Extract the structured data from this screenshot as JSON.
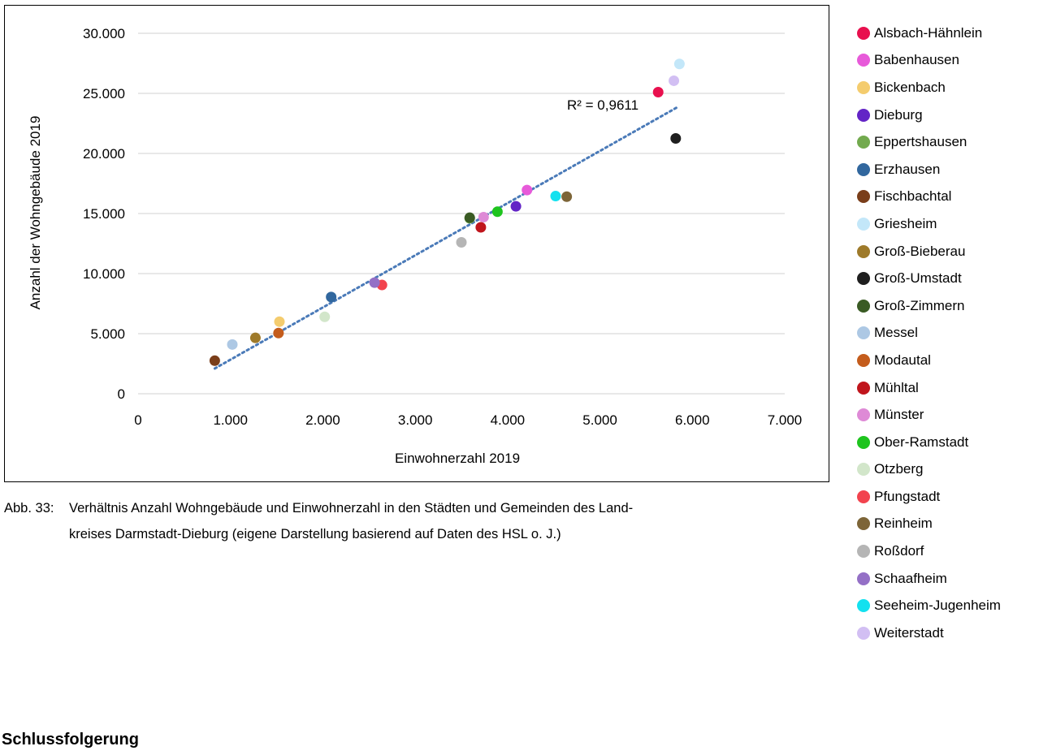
{
  "figure": {
    "caption_prefix": "Abb. 33:",
    "caption_line1": "Verhältnis Anzahl Wohngebäude und Einwohnerzahl in den Städten und Gemeinden des Land-",
    "caption_line2": "kreises Darmstadt-Dieburg (eigene Darstellung basierend auf Daten des HSL o. J.)",
    "section_heading": "Schlussfolgerung"
  },
  "chart_data": {
    "type": "scatter",
    "xlabel": "Einwohnerzahl 2019",
    "ylabel": "Anzahl der Wohngebäude 2019",
    "xlim": [
      0,
      7000
    ],
    "ylim": [
      0,
      30000
    ],
    "x_ticks": [
      0,
      1000,
      2000,
      3000,
      4000,
      5000,
      6000,
      7000
    ],
    "x_tick_labels": [
      "0",
      "1.000",
      "2.000",
      "3.000",
      "4.000",
      "5.000",
      "6.000",
      "7.000"
    ],
    "y_ticks": [
      0,
      5000,
      10000,
      15000,
      20000,
      25000,
      30000
    ],
    "y_tick_labels": [
      "0",
      "5.000",
      "10.000",
      "15.000",
      "20.000",
      "25.000",
      "30.000"
    ],
    "grid": "horizontal",
    "legend_position": "right",
    "trendline": {
      "type": "linear",
      "x": [
        830,
        5850
      ],
      "y": [
        2100,
        23900
      ],
      "color": "#4a7ab8",
      "style": "dotted"
    },
    "r2_label": "R² = 0,9611",
    "series": [
      {
        "name": "Alsbach-Hähnlein",
        "color": "#e8104e",
        "x": 5630,
        "y": 25100
      },
      {
        "name": "Babenhausen",
        "color": "#e75ad9",
        "x": 4210,
        "y": 16950
      },
      {
        "name": "Bickenbach",
        "color": "#f4cc6e",
        "x": 1530,
        "y": 6000
      },
      {
        "name": "Dieburg",
        "color": "#6324c6",
        "x": 4090,
        "y": 15600
      },
      {
        "name": "Eppertshausen",
        "color": "#72aa4e",
        "x": 3590,
        "y": 14600
      },
      {
        "name": "Erzhausen",
        "color": "#31679e",
        "x": 2090,
        "y": 8050
      },
      {
        "name": "Fischbachtal",
        "color": "#7a3e1a",
        "x": 830,
        "y": 2750
      },
      {
        "name": "Griesheim",
        "color": "#c3e7f9",
        "x": 5860,
        "y": 27450
      },
      {
        "name": "Groß-Bieberau",
        "color": "#9e7a2a",
        "x": 1270,
        "y": 4650
      },
      {
        "name": "Groß-Umstadt",
        "color": "#1f1f1f",
        "x": 5820,
        "y": 21250
      },
      {
        "name": "Groß-Zimmern",
        "color": "#3a5b24",
        "x": 3590,
        "y": 14650
      },
      {
        "name": "Messel",
        "color": "#adc8e4",
        "x": 1020,
        "y": 4100
      },
      {
        "name": "Modautal",
        "color": "#c45c1c",
        "x": 1520,
        "y": 5050
      },
      {
        "name": "Mühltal",
        "color": "#c0151c",
        "x": 3710,
        "y": 13850
      },
      {
        "name": "Münster",
        "color": "#de8ad6",
        "x": 3740,
        "y": 14700
      },
      {
        "name": "Ober-Ramstadt",
        "color": "#1ec41e",
        "x": 3890,
        "y": 15150
      },
      {
        "name": "Otzberg",
        "color": "#d2e6ca",
        "x": 2020,
        "y": 6400
      },
      {
        "name": "Pfungstadt",
        "color": "#f2434e",
        "x": 2640,
        "y": 9050
      },
      {
        "name": "Reinheim",
        "color": "#7d6538",
        "x": 4640,
        "y": 16400
      },
      {
        "name": "Roßdorf",
        "color": "#b5b5b5",
        "x": 3500,
        "y": 12600
      },
      {
        "name": "Schaafheim",
        "color": "#9470c6",
        "x": 2560,
        "y": 9250
      },
      {
        "name": "Seeheim-Jugenheim",
        "color": "#13e1ef",
        "x": 4520,
        "y": 16450
      },
      {
        "name": "Weiterstadt",
        "color": "#d2bff3",
        "x": 5800,
        "y": 26050
      }
    ]
  }
}
